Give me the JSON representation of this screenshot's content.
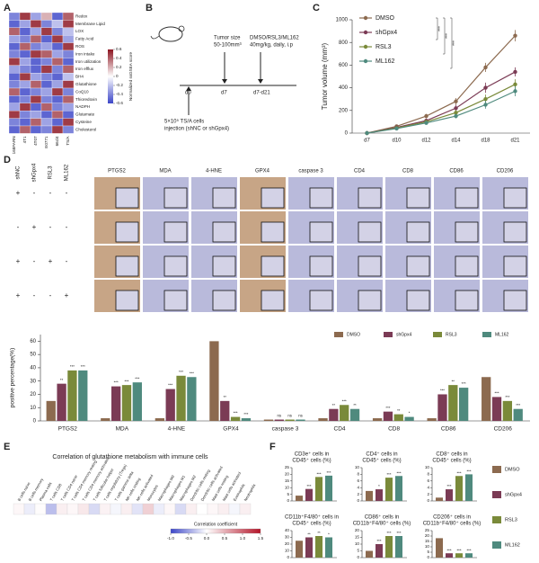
{
  "panel_labels": [
    "A",
    "B",
    "C",
    "D",
    "E",
    "F"
  ],
  "schematic": {
    "tumor_size": "Tumor size",
    "tumor_range": "50-100mm³",
    "treatment": "DMSO/RSL3/ML162",
    "dose": "40mg/kg, daily, i.p",
    "d0": "d0",
    "d7": "d7",
    "d7_d21": "d7-d21",
    "cells": "5×10⁵ TS/A cells",
    "injection": "injection (shNC or shGpx4)"
  },
  "ihc": {
    "treatments": [
      "shNC",
      "shGpx4",
      "RSL3",
      "ML162"
    ],
    "markers": [
      "PTGS2",
      "MDA",
      "4-HNE",
      "GPX4",
      "caspase 3",
      "CD4",
      "CD8",
      "CD86",
      "CD206"
    ],
    "table": [
      [
        "+",
        "-",
        "-",
        "-"
      ],
      [
        "-",
        "+",
        "-",
        "-"
      ],
      [
        "+",
        "-",
        "+",
        "-"
      ],
      [
        "+",
        "-",
        "-",
        "+"
      ]
    ]
  },
  "chart_data": [
    {
      "type": "heatmap",
      "rows": [
        "Redox",
        "Membrane Lipid",
        "LOX",
        "Fatty Acid",
        "ROS",
        "Iron intake",
        "Iron utilization",
        "Iron efflux",
        "BH4",
        "Glutathione",
        "CoQ10",
        "Thioredoxin",
        "NADPH",
        "Glutamate",
        "Cysteine",
        "Cholesterol"
      ],
      "columns": [
        "168FARN",
        "4T1",
        "4T07",
        "E0771",
        "66cl4",
        "TS/A"
      ],
      "column_colors": [
        "#222222",
        "#222222",
        "#222222",
        "#222222",
        "#222222",
        "#d01010"
      ],
      "values": [
        [
          -0.4,
          0.5,
          -0.3,
          0.2,
          -0.5,
          0.4
        ],
        [
          -0.5,
          -0.3,
          0.5,
          -0.4,
          -0.2,
          0.5
        ],
        [
          0.4,
          -0.5,
          -0.3,
          0.5,
          -0.4,
          -0.2
        ],
        [
          -0.3,
          -0.4,
          0.4,
          -0.5,
          0.5,
          -0.3
        ],
        [
          -0.5,
          0.4,
          -0.4,
          -0.3,
          -0.5,
          0.5
        ],
        [
          -0.4,
          -0.5,
          0.5,
          0.4,
          -0.3,
          -0.4
        ],
        [
          0.5,
          -0.3,
          -0.5,
          -0.4,
          0.4,
          -0.5
        ],
        [
          -0.3,
          -0.4,
          -0.5,
          0.5,
          -0.4,
          0.4
        ],
        [
          -0.5,
          0.5,
          -0.3,
          -0.4,
          -0.5,
          -0.2
        ],
        [
          -0.4,
          -0.3,
          0.4,
          -0.5,
          -0.3,
          0.5
        ],
        [
          0.4,
          -0.5,
          -0.4,
          -0.3,
          0.5,
          -0.4
        ],
        [
          -0.5,
          -0.4,
          0.5,
          -0.4,
          -0.5,
          0.4
        ],
        [
          -0.3,
          0.5,
          -0.5,
          0.4,
          -0.4,
          -0.3
        ],
        [
          0.5,
          -0.4,
          -0.3,
          -0.5,
          0.4,
          -0.5
        ],
        [
          -0.4,
          -0.5,
          0.4,
          -0.3,
          -0.5,
          0.5
        ],
        [
          -0.5,
          0.4,
          -0.5,
          -0.4,
          0.5,
          -0.4
        ]
      ],
      "clim": [
        -0.6,
        0.6
      ],
      "cticks": [
        0.6,
        0.4,
        0.2,
        0,
        -0.2,
        -0.4,
        -0.6
      ],
      "colorbar_title": "Normalized ssGSEA score"
    },
    {
      "type": "line",
      "ylabel": "Tumor volume (mm³)",
      "categories": [
        "d7",
        "d10",
        "d12",
        "d14",
        "d18",
        "d21"
      ],
      "series": [
        {
          "name": "DMSO",
          "color": "#8c6a4f",
          "values": [
            0,
            60,
            150,
            280,
            580,
            860
          ],
          "errors": [
            5,
            15,
            20,
            30,
            40,
            50
          ]
        },
        {
          "name": "shGpx4",
          "color": "#7b3b55",
          "values": [
            0,
            50,
            110,
            220,
            400,
            540
          ],
          "errors": [
            5,
            12,
            18,
            30,
            45,
            40
          ]
        },
        {
          "name": "RSL3",
          "color": "#7a8a3a",
          "values": [
            0,
            45,
            100,
            180,
            300,
            430
          ],
          "errors": [
            5,
            10,
            15,
            25,
            40,
            45
          ]
        },
        {
          "name": "ML162",
          "color": "#4f8a7e",
          "values": [
            0,
            40,
            90,
            150,
            250,
            370
          ],
          "errors": [
            5,
            10,
            15,
            20,
            35,
            45
          ]
        }
      ],
      "ylim": [
        0,
        1000
      ],
      "yticks": [
        0,
        200,
        400,
        600,
        800,
        1000
      ],
      "annotations": [
        "***",
        "***",
        "***"
      ]
    },
    {
      "type": "bar",
      "ylabel": "positive percentage(%)",
      "categories": [
        "PTGS2",
        "MDA",
        "4-HNE",
        "GPX4",
        "caspase 3",
        "CD4",
        "CD8",
        "CD86",
        "CD206"
      ],
      "series": [
        {
          "name": "DMSO",
          "color": "#8c6a4f",
          "values": [
            15,
            2,
            2,
            60,
            1,
            2,
            2,
            2,
            33
          ]
        },
        {
          "name": "shGpx4",
          "color": "#7b3b55",
          "values": [
            28,
            26,
            24,
            15,
            1,
            9,
            7,
            20,
            18
          ]
        },
        {
          "name": "RSL3",
          "color": "#7a8a3a",
          "values": [
            38,
            27,
            34,
            3,
            1,
            12,
            5,
            27,
            15
          ]
        },
        {
          "name": "ML162",
          "color": "#4f8a7e",
          "values": [
            38,
            29,
            33,
            2,
            1,
            9,
            3,
            25,
            9
          ]
        }
      ],
      "ylim": [
        0,
        65
      ],
      "yticks": [
        0,
        10,
        20,
        30,
        40,
        50,
        60
      ],
      "annotations": [
        [
          "**",
          "***",
          "***"
        ],
        [
          "***",
          "***",
          "***"
        ],
        [
          "***",
          "***",
          "***"
        ],
        [
          "**",
          "***",
          "***"
        ],
        [
          "ns",
          "ns",
          "ns"
        ],
        [
          "**",
          "***",
          "**"
        ],
        [
          "***",
          "**",
          "*"
        ],
        [
          "***",
          "**",
          "***"
        ],
        [
          "***",
          "***",
          "***"
        ]
      ]
    },
    {
      "type": "strip",
      "title": "Correlation of glutathione metabolism with immune cells",
      "categories": [
        "B cells naive",
        "B cells memory",
        "Plasma cells",
        "T cells CD8",
        "T cells CD4 naive",
        "T cells CD4 memory resting",
        "T cells CD4 memory activated",
        "T cells follicular helper",
        "T cells regulatory (Tregs)",
        "T cells gamma delta",
        "NK cells resting",
        "NK cells activated",
        "Monocytes",
        "Macrophages M0",
        "Macrophages M1",
        "Macrophages M2",
        "Dendritic cells resting",
        "Dendritic cells activated",
        "Mast cells resting",
        "Mast cells activated",
        "Eosinophils",
        "Neutrophils"
      ],
      "values": [
        0.05,
        -0.1,
        0.02,
        -0.35,
        0.1,
        0.05,
        0.15,
        -0.2,
        0.08,
        -0.05,
        0.1,
        -0.15,
        0.3,
        -0.1,
        0.05,
        -0.2,
        0.1,
        0,
        0.05,
        0.1,
        -0.05,
        0.1
      ],
      "clim": [
        -1,
        1.5
      ],
      "cticks": [
        {
          "value": -1,
          "label": "-1.0"
        },
        -0.5,
        {
          "value": 0,
          "label": "0.0"
        },
        0.5,
        {
          "value": 1,
          "label": "1.0"
        },
        1.5
      ],
      "colorbar_title": "Correlation coefficient"
    },
    {
      "type": "multibar",
      "series": [
        {
          "name": "DMSO",
          "color": "#8c6a4f"
        },
        {
          "name": "shGpx4",
          "color": "#7b3b55"
        },
        {
          "name": "RSL3",
          "color": "#7a8a3a"
        },
        {
          "name": "ML162",
          "color": "#4f8a7e"
        }
      ],
      "panels": [
        {
          "title": [
            "CD3e⁺ cells in",
            "CD45⁺ cells (%)"
          ],
          "values": [
            4,
            9,
            18,
            19
          ],
          "ylim": [
            0,
            25
          ],
          "yticks": [
            0,
            5,
            10,
            15,
            20,
            25
          ],
          "annotations": [
            "***",
            "***",
            "***"
          ]
        },
        {
          "title": [
            "CD4⁺ cells in",
            "CD45⁺ cells (%)"
          ],
          "values": [
            3,
            3.5,
            7,
            7.5
          ],
          "ylim": [
            0,
            10
          ],
          "yticks": [
            0,
            2,
            4,
            6,
            8,
            10
          ],
          "annotations": [
            "*",
            "***",
            "***"
          ]
        },
        {
          "title": [
            "CD8⁺ cells in",
            "CD45⁺ cells (%)"
          ],
          "values": [
            1,
            3.5,
            7.5,
            8
          ],
          "ylim": [
            0,
            10
          ],
          "yticks": [
            0,
            2,
            4,
            6,
            8,
            10
          ],
          "annotations": [
            "***",
            "***",
            "***"
          ]
        },
        {
          "title": [
            "CD11b⁺F4/80⁺ cells in",
            "CD45⁺ cells (%)"
          ],
          "values": [
            25,
            30,
            32,
            30
          ],
          "ylim": [
            0,
            40
          ],
          "yticks": [
            0,
            10,
            20,
            30,
            40
          ],
          "annotations": [
            "**",
            "**",
            "*"
          ]
        },
        {
          "title": [
            "CD86⁺ cells in",
            "CD11b⁺F4/80⁺ cells (%)"
          ],
          "values": [
            5,
            10,
            16,
            16
          ],
          "ylim": [
            0,
            20
          ],
          "yticks": [
            0,
            5,
            10,
            15,
            20
          ],
          "annotations": [
            "***",
            "***",
            "***"
          ]
        },
        {
          "title": [
            "CD206⁺ cells in",
            "CD11b⁺F4/80⁺ cells (%)"
          ],
          "values": [
            18,
            4,
            4,
            4
          ],
          "ylim": [
            0,
            25
          ],
          "yticks": [
            0,
            5,
            10,
            15,
            20,
            25
          ],
          "annotations": [
            "***",
            "***",
            "***"
          ]
        }
      ]
    }
  ]
}
